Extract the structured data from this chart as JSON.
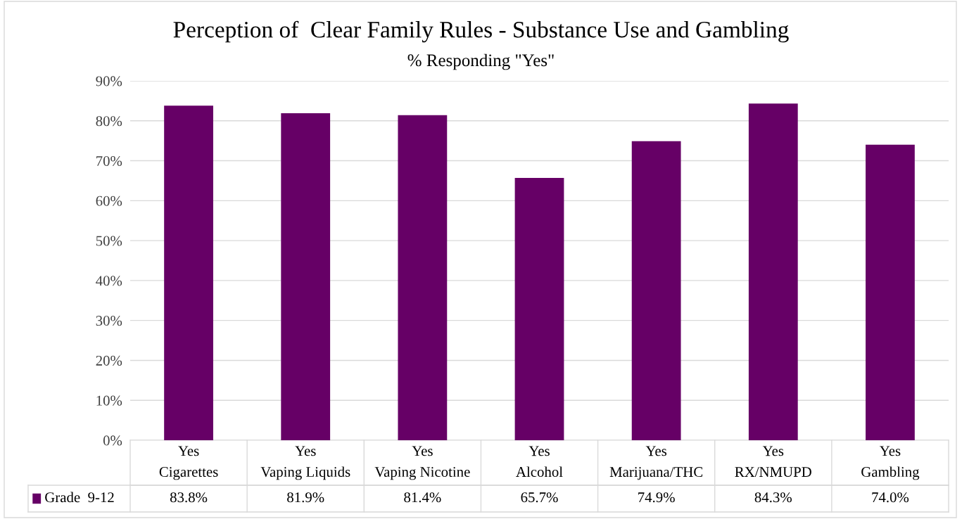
{
  "chart_data": {
    "type": "bar",
    "title": "Perception of  Clear Family Rules - Substance Use and Gambling",
    "subtitle": "% Responding \"Yes\"",
    "categories": [
      "Yes\nCigarettes",
      "Yes\nVaping Liquids",
      "Yes\nVaping Nicotine",
      "Yes\nAlcohol",
      "Yes\nMarijuana/THC",
      "Yes\nRX/NMUPD",
      "Yes\nGambling"
    ],
    "series": [
      {
        "name": "Grade  9-12",
        "color": "#660066",
        "values": [
          83.8,
          81.9,
          81.4,
          65.7,
          74.9,
          84.3,
          74.0
        ],
        "value_labels": [
          "83.8%",
          "81.9%",
          "81.4%",
          "65.7%",
          "74.9%",
          "84.3%",
          "74.0%"
        ]
      }
    ],
    "ylim": [
      0,
      90
    ],
    "yticks": [
      {
        "value": 0,
        "label": "0%"
      },
      {
        "value": 10,
        "label": "10%"
      },
      {
        "value": 20,
        "label": "20%"
      },
      {
        "value": 30,
        "label": "30%"
      },
      {
        "value": 40,
        "label": "40%"
      },
      {
        "value": 50,
        "label": "50%"
      },
      {
        "value": 60,
        "label": "60%"
      },
      {
        "value": 70,
        "label": "70%"
      },
      {
        "value": 80,
        "label": "80%"
      },
      {
        "value": 90,
        "label": "90%"
      }
    ],
    "grid": "y",
    "legend": "bottom left"
  }
}
